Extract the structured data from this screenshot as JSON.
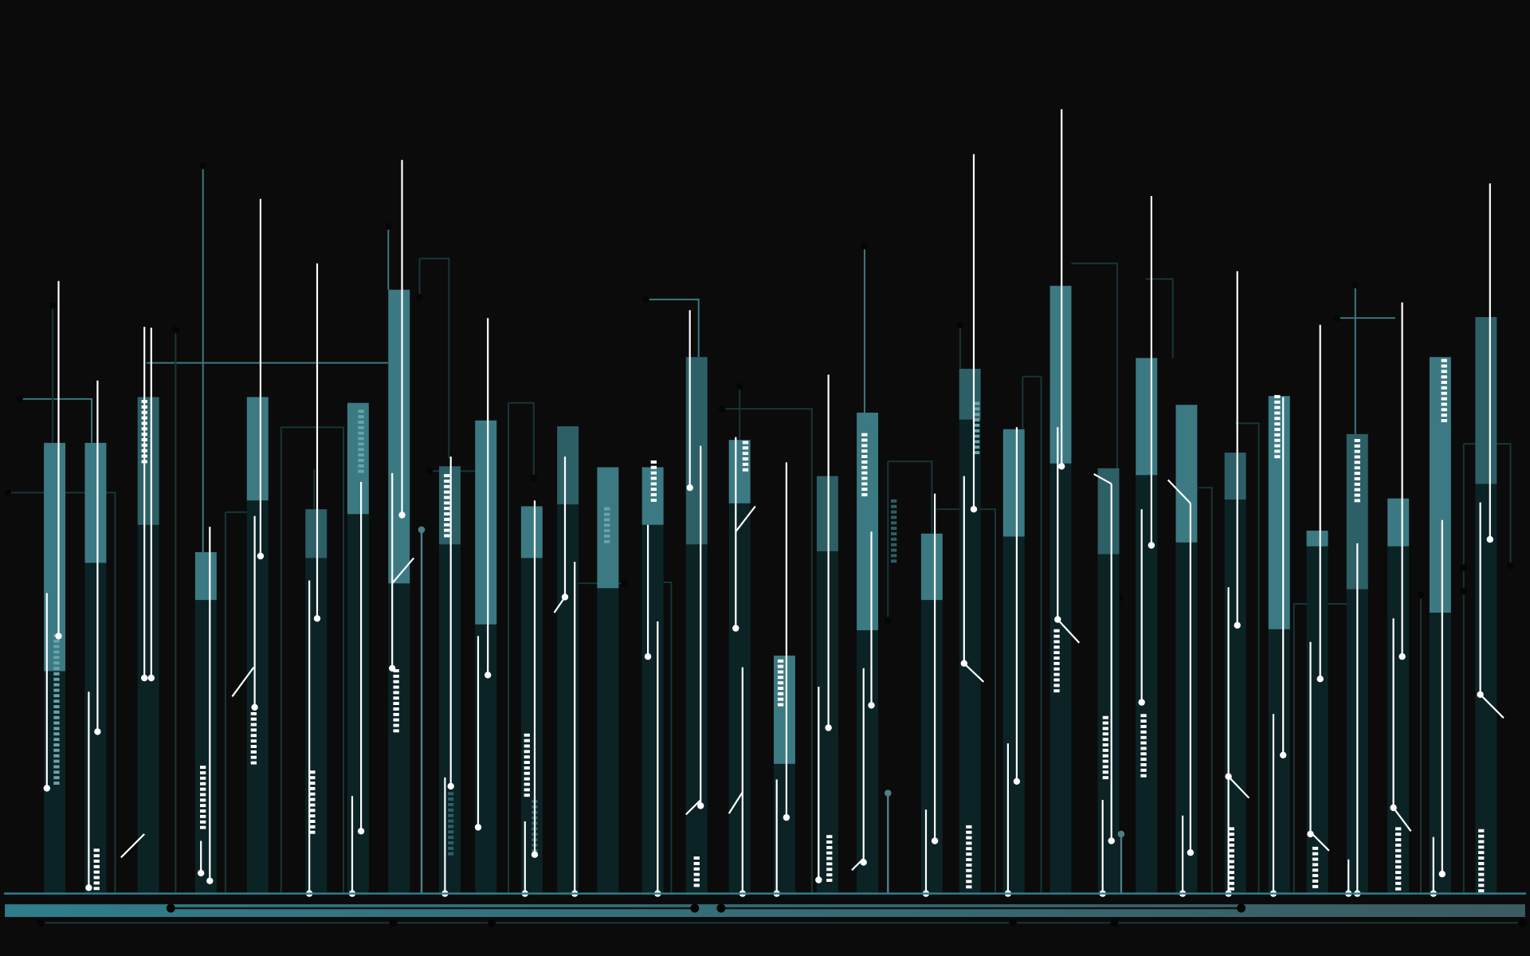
{
  "artwork": {
    "subject": "",
    "colors": {
      "background": "#0b0b0b",
      "tower_dark": "#0c2326",
      "tower_light": "#3c7a83",
      "tower_mid": "#2d5f66",
      "circuit_line": "#17363a",
      "circuit_line_bright": "#3c7a83",
      "antenna": "#ffffff",
      "node": "#ffffff",
      "ground_bar": "#2f7d8b",
      "ground_bar_end": "#3b5b60",
      "window_light": "#ffffff",
      "window_dim": "#6aa3ab"
    }
  }
}
